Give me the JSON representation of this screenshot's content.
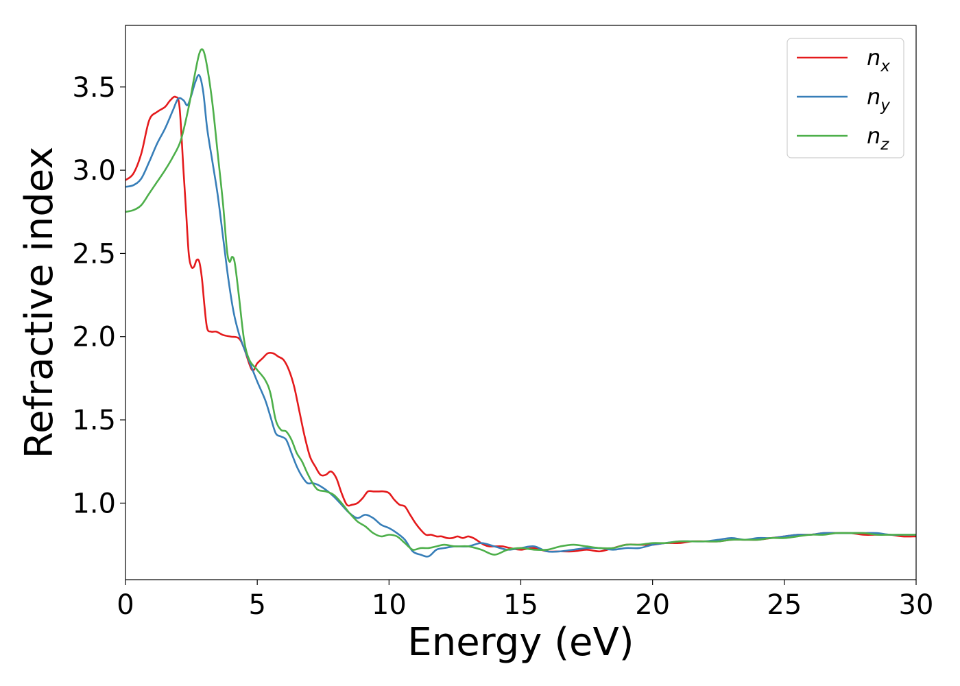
{
  "chart_data": {
    "type": "line",
    "title": "",
    "xlabel": "Energy (eV)",
    "ylabel": "Refractive index",
    "xlim": [
      0,
      30
    ],
    "ylim": [
      0.54,
      3.87
    ],
    "xticks": [
      0,
      5,
      10,
      15,
      20,
      25,
      30
    ],
    "xtick_labels": [
      "0",
      "5",
      "10",
      "15",
      "20",
      "25",
      "30"
    ],
    "yticks": [
      1.0,
      1.5,
      2.0,
      2.5,
      3.0,
      3.5
    ],
    "ytick_labels": [
      "1.0",
      "1.5",
      "2.0",
      "2.5",
      "3.0",
      "3.5"
    ],
    "grid": false,
    "legend_position": "top-right",
    "series": [
      {
        "name": "n_x",
        "legend_base": "n",
        "legend_sub": "x",
        "color": "#e41a1c",
        "x": [
          0,
          0.3,
          0.6,
          0.9,
          1.2,
          1.5,
          1.7,
          1.9,
          2.05,
          2.2,
          2.3,
          2.4,
          2.5,
          2.6,
          2.7,
          2.8,
          2.9,
          3.0,
          3.1,
          3.25,
          3.45,
          3.7,
          4.0,
          4.3,
          4.5,
          4.8,
          5.0,
          5.2,
          5.4,
          5.6,
          5.8,
          6.0,
          6.2,
          6.4,
          6.6,
          6.8,
          7.0,
          7.2,
          7.4,
          7.6,
          7.8,
          8.0,
          8.2,
          8.4,
          8.6,
          8.8,
          9.0,
          9.2,
          9.4,
          9.6,
          9.8,
          10.0,
          10.2,
          10.4,
          10.6,
          10.8,
          11.0,
          11.2,
          11.4,
          11.6,
          11.8,
          12.0,
          12.2,
          12.4,
          12.6,
          12.8,
          13.0,
          13.2,
          13.4,
          13.6,
          13.8,
          14.0,
          14.3,
          14.6,
          15.0,
          15.5,
          16.0,
          16.5,
          17.0,
          17.5,
          18.0,
          18.5,
          19.0,
          19.5,
          20.0,
          20.5,
          21.0,
          21.5,
          22.0,
          22.5,
          23.0,
          23.5,
          24.0,
          24.5,
          25.0,
          25.5,
          26.0,
          26.5,
          27.0,
          27.5,
          28.0,
          28.5,
          29.0,
          29.5,
          30.0
        ],
        "y": [
          2.94,
          2.98,
          3.1,
          3.3,
          3.35,
          3.38,
          3.42,
          3.44,
          3.38,
          3.0,
          2.75,
          2.5,
          2.42,
          2.42,
          2.46,
          2.45,
          2.35,
          2.18,
          2.05,
          2.03,
          2.03,
          2.01,
          2.0,
          1.99,
          1.93,
          1.8,
          1.84,
          1.87,
          1.9,
          1.9,
          1.88,
          1.86,
          1.8,
          1.7,
          1.55,
          1.4,
          1.28,
          1.22,
          1.17,
          1.17,
          1.19,
          1.15,
          1.06,
          0.99,
          0.99,
          1.0,
          1.03,
          1.07,
          1.07,
          1.07,
          1.07,
          1.06,
          1.02,
          0.99,
          0.98,
          0.93,
          0.88,
          0.84,
          0.81,
          0.81,
          0.8,
          0.8,
          0.79,
          0.79,
          0.8,
          0.79,
          0.8,
          0.79,
          0.77,
          0.75,
          0.74,
          0.74,
          0.74,
          0.73,
          0.72,
          0.73,
          0.71,
          0.71,
          0.71,
          0.72,
          0.71,
          0.73,
          0.75,
          0.75,
          0.75,
          0.76,
          0.76,
          0.77,
          0.77,
          0.77,
          0.78,
          0.78,
          0.78,
          0.79,
          0.8,
          0.81,
          0.81,
          0.82,
          0.82,
          0.82,
          0.81,
          0.81,
          0.81,
          0.8,
          0.8
        ]
      },
      {
        "name": "n_y",
        "legend_base": "n",
        "legend_sub": "y",
        "color": "#377eb8",
        "x": [
          0,
          0.3,
          0.6,
          0.9,
          1.2,
          1.5,
          1.8,
          2.0,
          2.2,
          2.35,
          2.5,
          2.65,
          2.8,
          2.95,
          3.1,
          3.3,
          3.5,
          3.7,
          3.9,
          4.1,
          4.3,
          4.5,
          4.7,
          5.0,
          5.3,
          5.5,
          5.7,
          5.9,
          6.1,
          6.3,
          6.5,
          6.7,
          6.9,
          7.1,
          7.3,
          7.6,
          7.9,
          8.2,
          8.5,
          8.8,
          9.1,
          9.4,
          9.7,
          10.0,
          10.3,
          10.6,
          10.9,
          11.2,
          11.5,
          11.8,
          12.1,
          12.5,
          13.0,
          13.5,
          14.0,
          14.5,
          15.0,
          15.5,
          16.0,
          16.5,
          17.0,
          17.5,
          18.0,
          18.5,
          19.0,
          19.5,
          20.0,
          20.5,
          21.0,
          21.5,
          22.0,
          22.5,
          23.0,
          23.5,
          24.0,
          24.5,
          25.0,
          25.5,
          26.0,
          26.5,
          27.0,
          27.5,
          28.0,
          28.5,
          29.0,
          29.5,
          30.0
        ],
        "y": [
          2.9,
          2.91,
          2.95,
          3.05,
          3.16,
          3.25,
          3.36,
          3.43,
          3.42,
          3.39,
          3.45,
          3.53,
          3.57,
          3.47,
          3.25,
          3.05,
          2.85,
          2.6,
          2.35,
          2.15,
          2.02,
          1.93,
          1.85,
          1.73,
          1.62,
          1.52,
          1.42,
          1.4,
          1.38,
          1.3,
          1.22,
          1.16,
          1.12,
          1.12,
          1.11,
          1.08,
          1.04,
          0.99,
          0.94,
          0.91,
          0.93,
          0.91,
          0.87,
          0.85,
          0.82,
          0.78,
          0.71,
          0.69,
          0.68,
          0.72,
          0.73,
          0.74,
          0.74,
          0.76,
          0.74,
          0.72,
          0.73,
          0.74,
          0.71,
          0.71,
          0.72,
          0.73,
          0.73,
          0.72,
          0.73,
          0.73,
          0.75,
          0.76,
          0.77,
          0.77,
          0.77,
          0.78,
          0.79,
          0.78,
          0.79,
          0.79,
          0.8,
          0.81,
          0.81,
          0.82,
          0.82,
          0.82,
          0.82,
          0.82,
          0.81,
          0.81,
          0.81
        ]
      },
      {
        "name": "n_z",
        "legend_base": "n",
        "legend_sub": "z",
        "color": "#4daf4a",
        "x": [
          0,
          0.3,
          0.6,
          0.9,
          1.2,
          1.5,
          1.8,
          2.1,
          2.4,
          2.6,
          2.8,
          2.95,
          3.1,
          3.3,
          3.5,
          3.7,
          3.85,
          3.95,
          4.05,
          4.15,
          4.3,
          4.5,
          4.7,
          5.0,
          5.3,
          5.5,
          5.7,
          5.9,
          6.1,
          6.3,
          6.5,
          6.7,
          6.9,
          7.1,
          7.3,
          7.6,
          7.9,
          8.2,
          8.5,
          8.8,
          9.1,
          9.4,
          9.7,
          10.0,
          10.3,
          10.6,
          10.9,
          11.2,
          11.5,
          11.8,
          12.1,
          12.5,
          13.0,
          13.5,
          14.0,
          14.5,
          15.0,
          15.5,
          16.0,
          16.5,
          17.0,
          17.5,
          18.0,
          18.5,
          19.0,
          19.5,
          20.0,
          20.5,
          21.0,
          21.5,
          22.0,
          22.5,
          23.0,
          23.5,
          24.0,
          24.5,
          25.0,
          25.5,
          26.0,
          26.5,
          27.0,
          27.5,
          28.0,
          28.5,
          29.0,
          29.5,
          30.0
        ],
        "y": [
          2.75,
          2.76,
          2.79,
          2.86,
          2.93,
          3.0,
          3.08,
          3.18,
          3.38,
          3.55,
          3.7,
          3.72,
          3.62,
          3.4,
          3.1,
          2.8,
          2.52,
          2.45,
          2.48,
          2.44,
          2.25,
          1.98,
          1.86,
          1.8,
          1.74,
          1.66,
          1.5,
          1.44,
          1.43,
          1.38,
          1.3,
          1.25,
          1.18,
          1.12,
          1.08,
          1.07,
          1.05,
          1.0,
          0.94,
          0.89,
          0.86,
          0.82,
          0.8,
          0.81,
          0.8,
          0.76,
          0.72,
          0.73,
          0.73,
          0.74,
          0.75,
          0.74,
          0.74,
          0.72,
          0.69,
          0.72,
          0.73,
          0.72,
          0.72,
          0.74,
          0.75,
          0.74,
          0.73,
          0.73,
          0.75,
          0.75,
          0.76,
          0.76,
          0.77,
          0.77,
          0.77,
          0.77,
          0.78,
          0.78,
          0.78,
          0.79,
          0.79,
          0.8,
          0.81,
          0.81,
          0.82,
          0.82,
          0.82,
          0.81,
          0.81,
          0.81,
          0.81
        ]
      }
    ]
  }
}
